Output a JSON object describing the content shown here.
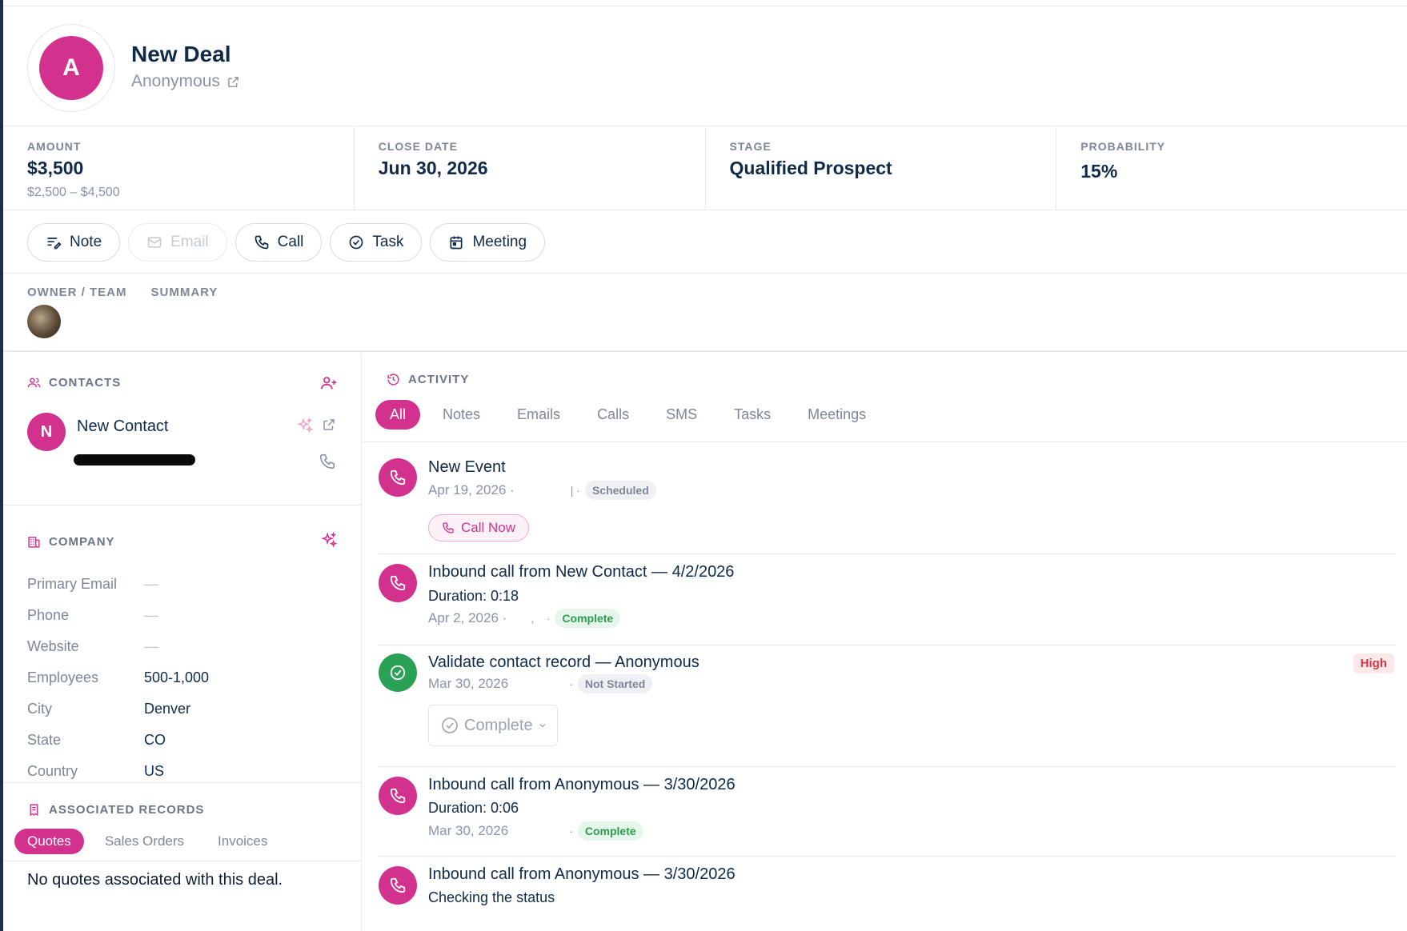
{
  "header": {
    "avatar_initial": "A",
    "title": "New Deal",
    "subtitle": "Anonymous"
  },
  "stats": [
    {
      "label": "AMOUNT",
      "value": "$3,500",
      "range": "$2,500 – $4,500"
    },
    {
      "label": "CLOSE DATE",
      "value": "Jun 30, 2026"
    },
    {
      "label": "STAGE",
      "value": "Qualified Prospect"
    },
    {
      "label": "PROBABILITY",
      "value": "15%"
    }
  ],
  "actions": {
    "note": "Note",
    "email": "Email",
    "call": "Call",
    "task": "Task",
    "meeting": "Meeting"
  },
  "owner_section": {
    "tab_owner": "OWNER / TEAM",
    "tab_summary": "SUMMARY"
  },
  "contacts": {
    "heading": "CONTACTS",
    "items": [
      {
        "initial": "N",
        "name": "New Contact"
      }
    ]
  },
  "company": {
    "heading": "COMPANY",
    "rows": [
      {
        "key": "Primary Email",
        "value": "—"
      },
      {
        "key": "Phone",
        "value": "—"
      },
      {
        "key": "Website",
        "value": "—"
      },
      {
        "key": "Employees",
        "value": "500-1,000"
      },
      {
        "key": "City",
        "value": "Denver"
      },
      {
        "key": "State",
        "value": "CO"
      },
      {
        "key": "Country",
        "value": "US"
      }
    ]
  },
  "associated": {
    "heading": "ASSOCIATED RECORDS",
    "tabs": [
      "Quotes",
      "Sales Orders",
      "Invoices"
    ],
    "empty_text": "No quotes associated with this deal."
  },
  "activity": {
    "heading": "ACTIVITY",
    "tabs": [
      "All",
      "Notes",
      "Emails",
      "Calls",
      "SMS",
      "Tasks",
      "Meetings"
    ],
    "items": [
      {
        "title": "New Event",
        "date": "Apr 19, 2026 ·",
        "sep": "| ·",
        "badge": "Scheduled",
        "button": "Call Now"
      },
      {
        "title": "Inbound call from New Contact — 4/2/2026",
        "line": "Duration: 0:18",
        "date": "Apr 2, 2026 ·",
        "sep": ",    ·",
        "badge": "Complete"
      },
      {
        "title": "Validate contact record — Anonymous",
        "date": "Mar 30, 2026",
        "sep": "·",
        "badge": "Not Started",
        "priority": "High",
        "dropdown": "Complete"
      },
      {
        "title": "Inbound call from Anonymous — 3/30/2026",
        "line": "Duration: 0:06",
        "date": "Mar 30, 2026",
        "sep": "·",
        "badge": "Complete"
      },
      {
        "title": "Inbound call from Anonymous — 3/30/2026",
        "line": "Checking the status"
      }
    ]
  },
  "colors": {
    "accent": "#d2318e",
    "navy": "#0f2a4a",
    "success": "#2aa155",
    "muted": "#7d8797"
  }
}
